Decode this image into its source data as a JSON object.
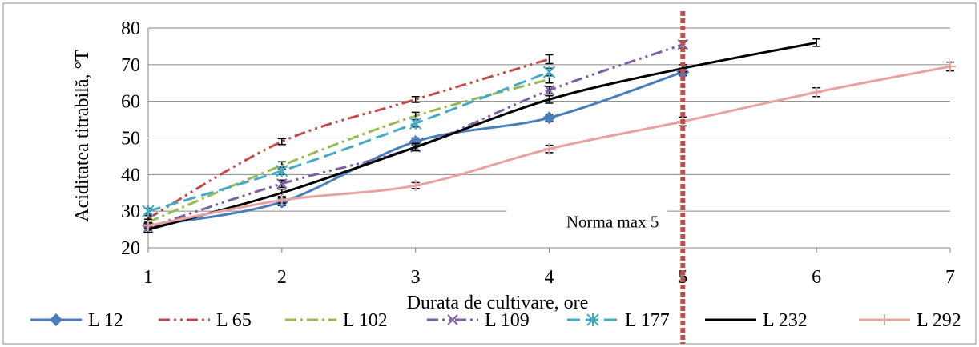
{
  "chart_data": {
    "type": "line",
    "xlabel": "Durata  de cultivare,  ore",
    "ylabel": "Aciditatea  titrabilă,  °T",
    "xlim": [
      1,
      7
    ],
    "ylim": [
      20,
      80
    ],
    "x_ticks": [
      1,
      2,
      3,
      4,
      5,
      6,
      7
    ],
    "y_ticks": [
      20,
      30,
      40,
      50,
      60,
      70,
      80
    ],
    "grid": "horizontal",
    "legend_position": "bottom",
    "annotation": {
      "text": "Norma max 5",
      "x": 5
    },
    "series": [
      {
        "name": "L 12",
        "color": "#4a7ebb",
        "dash": "solid",
        "marker": "diamond",
        "x": [
          1,
          2,
          3,
          4,
          5
        ],
        "y": [
          26,
          32.5,
          49,
          55.5,
          68
        ],
        "err": [
          0.8,
          1,
          1,
          1,
          1
        ]
      },
      {
        "name": "L 65",
        "color": "#be4b48",
        "dash": "dashdotdot",
        "marker": "none",
        "x": [
          1,
          2,
          3,
          4
        ],
        "y": [
          28,
          49,
          60.5,
          71.5
        ],
        "err": [
          0.8,
          0.8,
          0.8,
          1.2
        ]
      },
      {
        "name": "L 102",
        "color": "#98b954",
        "dash": "dashdot",
        "marker": "none",
        "x": [
          1,
          2,
          3,
          4
        ],
        "y": [
          27,
          42.5,
          56,
          66
        ],
        "err": [
          0.8,
          1,
          1,
          1
        ]
      },
      {
        "name": "L 109",
        "color": "#7d60a0",
        "dash": "dashdotdot",
        "marker": "x",
        "x": [
          1,
          2,
          3,
          4,
          5
        ],
        "y": [
          25.5,
          37.5,
          47.5,
          63,
          75.5
        ],
        "err": [
          0.8,
          1,
          1,
          1,
          1
        ]
      },
      {
        "name": "L 177",
        "color": "#46aac5",
        "dash": "longdash",
        "marker": "star",
        "x": [
          1,
          2,
          3,
          4
        ],
        "y": [
          30,
          41,
          54,
          68
        ],
        "err": [
          0.8,
          1,
          1,
          1
        ]
      },
      {
        "name": "L 232",
        "color": "#000000",
        "dash": "solid",
        "marker": "none",
        "x": [
          1,
          2,
          3,
          4,
          5,
          6
        ],
        "y": [
          25,
          35,
          47.5,
          60.5,
          69,
          76
        ],
        "err": [
          0.8,
          1,
          1,
          1,
          1,
          1
        ]
      },
      {
        "name": "L 292",
        "color": "#e6a3a1",
        "dash": "solid",
        "marker": "plus",
        "x": [
          1,
          2,
          3,
          4,
          5,
          6,
          7
        ],
        "y": [
          26,
          33,
          37,
          47,
          54.5,
          62.5,
          69.5
        ],
        "err": [
          0.8,
          0.8,
          0.8,
          1,
          1.2,
          1.2,
          1.2
        ]
      }
    ]
  }
}
